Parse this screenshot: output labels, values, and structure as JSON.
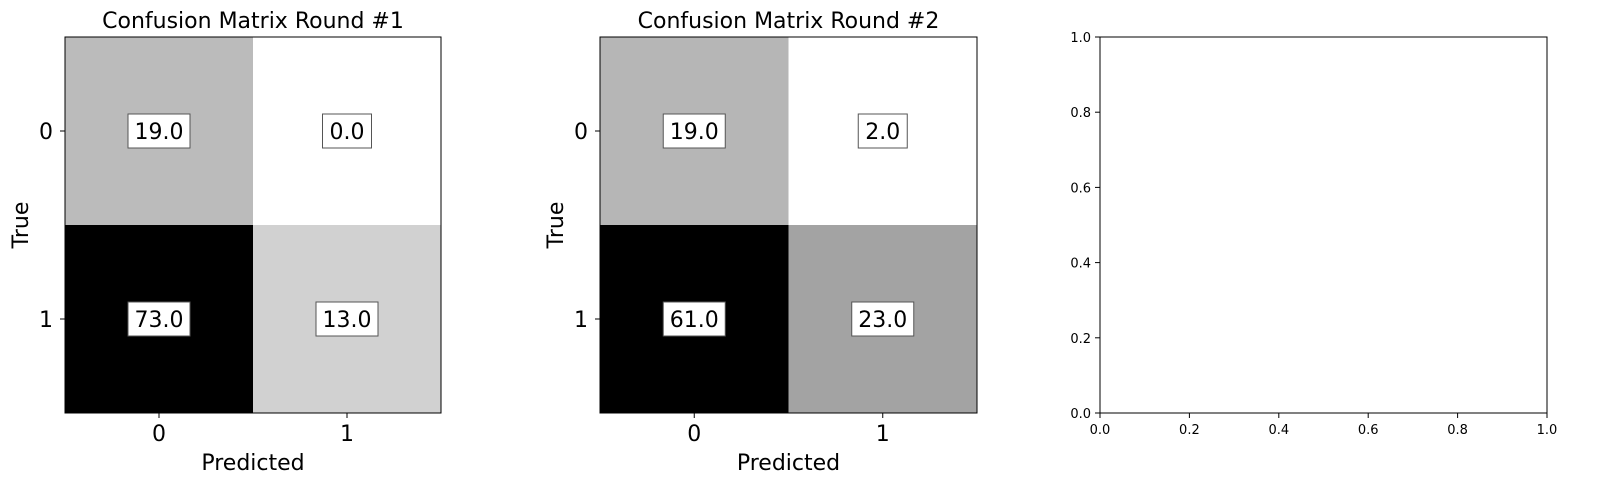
{
  "chart_data": [
    {
      "type": "heatmap",
      "title": "Confusion Matrix Round #1",
      "xlabel": "Predicted",
      "ylabel": "True",
      "x_ticks": [
        "0",
        "1"
      ],
      "y_ticks": [
        "0",
        "1"
      ],
      "cells": [
        {
          "row": 0,
          "col": 0,
          "label": "19.0",
          "value": 19.0,
          "color": "#bbbbbb"
        },
        {
          "row": 0,
          "col": 1,
          "label": "0.0",
          "value": 0.0,
          "color": "#ffffff"
        },
        {
          "row": 1,
          "col": 0,
          "label": "73.0",
          "value": 73.0,
          "color": "#000000"
        },
        {
          "row": 1,
          "col": 1,
          "label": "13.0",
          "value": 13.0,
          "color": "#d1d1d1"
        }
      ]
    },
    {
      "type": "heatmap",
      "title": "Confusion Matrix Round #2",
      "xlabel": "Predicted",
      "ylabel": "True",
      "x_ticks": [
        "0",
        "1"
      ],
      "y_ticks": [
        "0",
        "1"
      ],
      "cells": [
        {
          "row": 0,
          "col": 0,
          "label": "19.0",
          "value": 19.0,
          "color": "#b6b6b6"
        },
        {
          "row": 0,
          "col": 1,
          "label": "2.0",
          "value": 2.0,
          "color": "#ffffff"
        },
        {
          "row": 1,
          "col": 0,
          "label": "61.0",
          "value": 61.0,
          "color": "#000000"
        },
        {
          "row": 1,
          "col": 1,
          "label": "23.0",
          "value": 23.0,
          "color": "#a3a3a3"
        }
      ]
    },
    {
      "type": "scatter",
      "title": "",
      "xlabel": "",
      "ylabel": "",
      "xlim": [
        0.0,
        1.0
      ],
      "ylim": [
        0.0,
        1.0
      ],
      "x_ticks": [
        "0.0",
        "0.2",
        "0.4",
        "0.6",
        "0.8",
        "1.0"
      ],
      "y_ticks": [
        "0.0",
        "0.2",
        "0.4",
        "0.6",
        "0.8",
        "1.0"
      ],
      "series": []
    }
  ]
}
